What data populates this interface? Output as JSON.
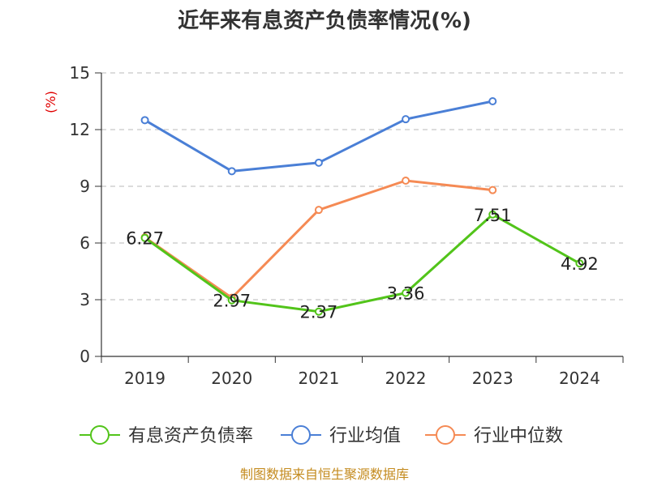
{
  "chart_data": {
    "type": "line",
    "title": "近年来有息资产负债率情况(%)",
    "ylabel": "(%)",
    "xlabel": "",
    "categories": [
      "2019",
      "2020",
      "2021",
      "2022",
      "2023",
      "2024"
    ],
    "ylim": [
      0,
      15
    ],
    "yticks": [
      0,
      3,
      6,
      9,
      12,
      15
    ],
    "grid": true,
    "legend_position": "bottom",
    "series": [
      {
        "name": "有息资产负债率",
        "color": "#52c41a",
        "values": [
          6.27,
          2.97,
          2.37,
          3.36,
          7.51,
          4.92
        ],
        "labels": [
          "6.27",
          "2.97",
          "2.37",
          "3.36",
          "7.51",
          "4.92"
        ]
      },
      {
        "name": "行业均值",
        "color": "#4a7fd6",
        "values": [
          12.5,
          9.8,
          10.25,
          12.55,
          13.5,
          null
        ]
      },
      {
        "name": "行业中位数",
        "color": "#f58a54",
        "values": [
          6.3,
          3.1,
          7.75,
          9.3,
          8.8,
          null
        ]
      }
    ]
  },
  "source": "制图数据来自恒生聚源数据库"
}
